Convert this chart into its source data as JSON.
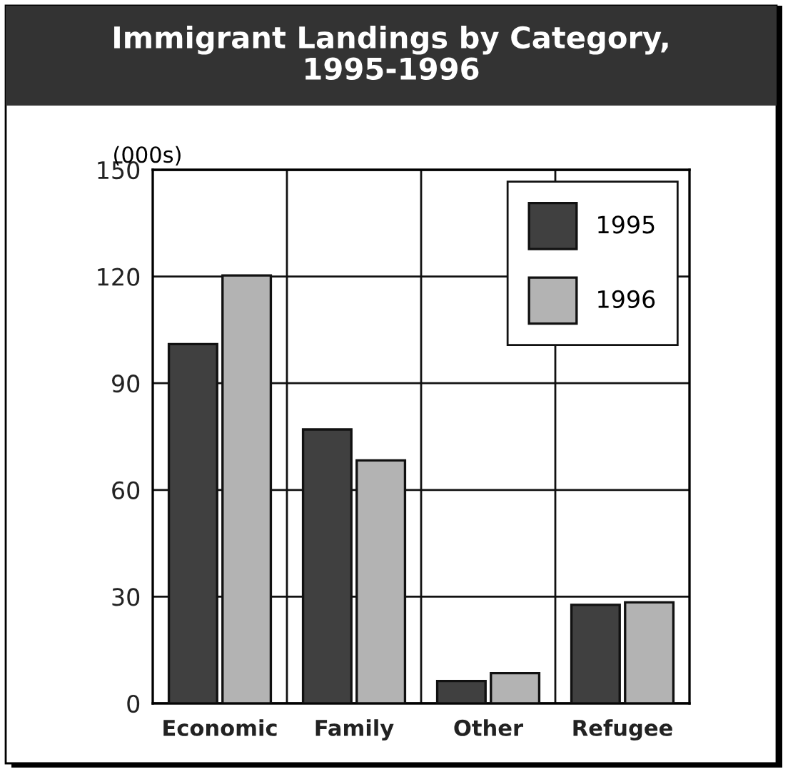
{
  "chart_data": {
    "type": "bar",
    "title": "Immigrant Landings by Category,\n1995-1996",
    "ylabel": "(000s)",
    "categories": [
      "Economic",
      "Family",
      "Other",
      "Refugee"
    ],
    "series": [
      {
        "name": "1995",
        "color": "#404040",
        "values": [
          101,
          77,
          6.3,
          27.7
        ]
      },
      {
        "name": "1996",
        "color": "#b3b3b3",
        "values": [
          120.3,
          68.3,
          8.5,
          28.4
        ]
      }
    ],
    "ylim": [
      0,
      150
    ],
    "yticks": [
      0,
      30,
      60,
      90,
      120,
      150
    ],
    "grid": true,
    "legend": "top right"
  }
}
